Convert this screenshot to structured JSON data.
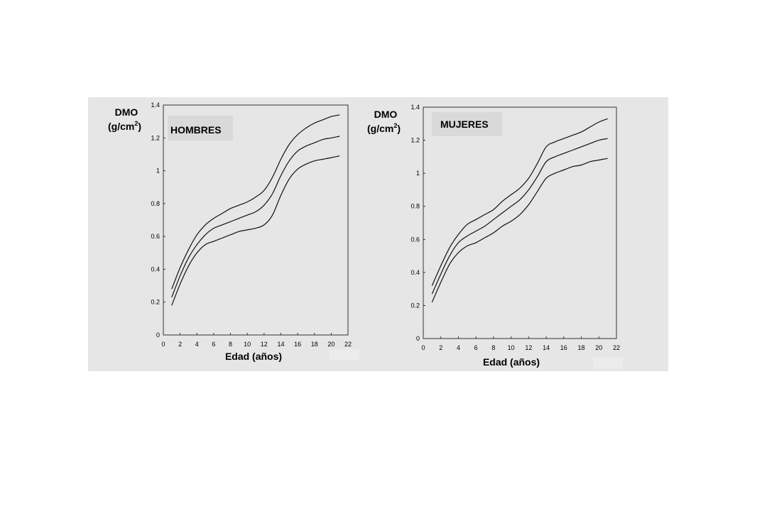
{
  "chart_data": [
    {
      "type": "line",
      "title": "HOMBRES",
      "ylabel_line1": "DMO",
      "ylabel_line2": "(g/cm",
      "ylabel_sup": "2",
      "ylabel_close": ")",
      "xlabel": "Edad (años)",
      "xlim": [
        0,
        22
      ],
      "ylim": [
        0,
        1.4
      ],
      "xticks": [
        "0",
        "2",
        "4",
        "6",
        "8",
        "10",
        "12",
        "14",
        "16",
        "18",
        "20",
        "22"
      ],
      "yticks": [
        "0",
        "0.2",
        "0.4",
        "0.6",
        "0.8",
        "1",
        "1.2",
        "1.4"
      ],
      "x": [
        1,
        2,
        3,
        4,
        5,
        6,
        7,
        8,
        9,
        10,
        11,
        12,
        13,
        14,
        15,
        16,
        17,
        18,
        19,
        20,
        21
      ],
      "series": [
        {
          "values": [
            0.28,
            0.41,
            0.52,
            0.61,
            0.67,
            0.71,
            0.74,
            0.77,
            0.79,
            0.81,
            0.84,
            0.88,
            0.96,
            1.07,
            1.16,
            1.22,
            1.26,
            1.29,
            1.31,
            1.33,
            1.34
          ]
        },
        {
          "values": [
            0.23,
            0.36,
            0.47,
            0.55,
            0.61,
            0.65,
            0.67,
            0.69,
            0.71,
            0.73,
            0.75,
            0.79,
            0.86,
            0.97,
            1.06,
            1.12,
            1.15,
            1.17,
            1.19,
            1.2,
            1.21
          ]
        },
        {
          "values": [
            0.18,
            0.31,
            0.42,
            0.5,
            0.55,
            0.57,
            0.59,
            0.61,
            0.63,
            0.64,
            0.65,
            0.67,
            0.73,
            0.85,
            0.95,
            1.01,
            1.04,
            1.06,
            1.07,
            1.08,
            1.09
          ]
        }
      ]
    },
    {
      "type": "line",
      "title": "MUJERES",
      "ylabel_line1": "DMO",
      "ylabel_line2": "(g/cm",
      "ylabel_sup": "2",
      "ylabel_close": ")",
      "xlabel": "Edad (años)",
      "xlim": [
        0,
        22
      ],
      "ylim": [
        0,
        1.4
      ],
      "xticks": [
        "0",
        "2",
        "4",
        "6",
        "8",
        "10",
        "12",
        "14",
        "16",
        "18",
        "20",
        "22"
      ],
      "yticks": [
        "0",
        "0.2",
        "0.4",
        "0.6",
        "0.8",
        "1",
        "1.2",
        "1.4"
      ],
      "x": [
        1,
        2,
        3,
        4,
        5,
        6,
        7,
        8,
        9,
        10,
        11,
        12,
        13,
        14,
        15,
        16,
        17,
        18,
        19,
        20,
        21
      ],
      "series": [
        {
          "values": [
            0.32,
            0.44,
            0.55,
            0.63,
            0.69,
            0.72,
            0.75,
            0.78,
            0.83,
            0.87,
            0.91,
            0.97,
            1.06,
            1.16,
            1.19,
            1.21,
            1.23,
            1.25,
            1.28,
            1.31,
            1.33
          ]
        },
        {
          "values": [
            0.27,
            0.39,
            0.5,
            0.58,
            0.62,
            0.65,
            0.68,
            0.72,
            0.76,
            0.8,
            0.84,
            0.9,
            0.98,
            1.07,
            1.1,
            1.12,
            1.14,
            1.16,
            1.18,
            1.2,
            1.21
          ]
        },
        {
          "values": [
            0.22,
            0.34,
            0.45,
            0.52,
            0.56,
            0.58,
            0.61,
            0.64,
            0.68,
            0.71,
            0.75,
            0.81,
            0.89,
            0.97,
            1.0,
            1.02,
            1.04,
            1.05,
            1.07,
            1.08,
            1.09
          ]
        }
      ]
    }
  ]
}
